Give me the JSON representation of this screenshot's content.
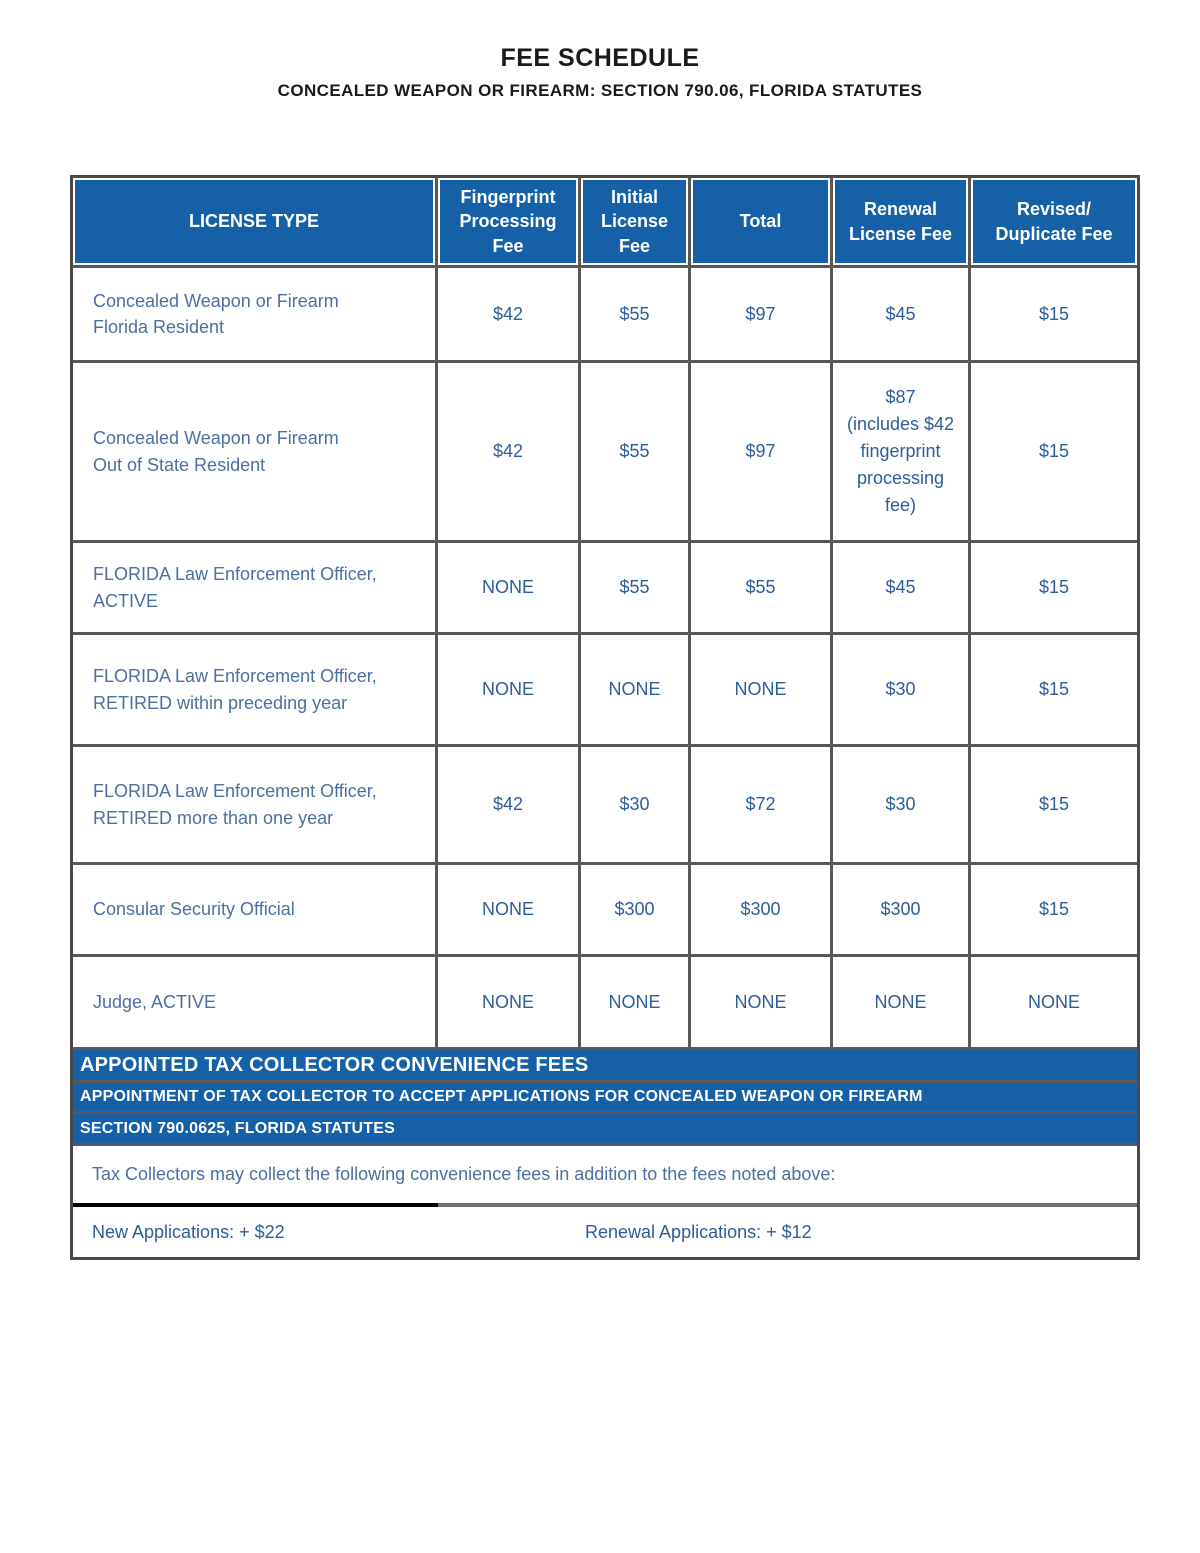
{
  "document": {
    "title": "FEE SCHEDULE",
    "subtitle": "CONCEALED WEAPON OR FIREARM: SECTION 790.06, FLORIDA STATUTES"
  },
  "colors": {
    "header_blue": "#1560a7",
    "border_gray": "#595959",
    "outer_border": "#4a4a4a",
    "license_text_blue": "#4d6fa1",
    "fee_value_blue": "#2f5d99",
    "banner_text": "#ffffff",
    "divider_black": "#000000"
  },
  "fee_table": {
    "columns": [
      {
        "label": "LICENSE TYPE"
      },
      {
        "label": "Fingerprint\nProcessing\nFee"
      },
      {
        "label": "Initial\nLicense\nFee"
      },
      {
        "label": "Total"
      },
      {
        "label": "Renewal\nLicense Fee"
      },
      {
        "label": "Revised/\nDuplicate Fee"
      }
    ],
    "rows": [
      {
        "license_type": "Concealed Weapon or Firearm\nFlorida Resident",
        "fees": [
          "$42",
          "$55",
          "$97",
          "$45",
          "$15"
        ]
      },
      {
        "license_type": "Concealed Weapon or Firearm\nOut of State Resident",
        "fees": [
          "$42",
          "$55",
          "$97",
          "$87\n(includes $42\nfingerprint\nprocessing\nfee)",
          "$15"
        ]
      },
      {
        "license_type": "FLORIDA Law Enforcement Officer,\nACTIVE",
        "fees": [
          "NONE",
          "$55",
          "$55",
          "$45",
          "$15"
        ]
      },
      {
        "license_type": "FLORIDA Law Enforcement Officer,\nRETIRED within preceding year",
        "fees": [
          "NONE",
          "NONE",
          "NONE",
          "$30",
          "$15"
        ]
      },
      {
        "license_type": "FLORIDA Law Enforcement Officer,\nRETIRED more than one year",
        "fees": [
          "$42",
          "$30",
          "$72",
          "$30",
          "$15"
        ]
      },
      {
        "license_type": "Consular Security Official",
        "fees": [
          "NONE",
          "$300",
          "$300",
          "$300",
          "$15"
        ]
      },
      {
        "license_type": "Judge, ACTIVE",
        "fees": [
          "NONE",
          "NONE",
          "NONE",
          "NONE",
          "NONE"
        ]
      }
    ]
  },
  "convenience_section": {
    "banner_title": "APPOINTED TAX COLLECTOR CONVENIENCE FEES",
    "banner_line2": "APPOINTMENT OF TAX COLLECTOR TO ACCEPT APPLICATIONS FOR CONCEALED WEAPON OR FIREARM",
    "banner_line3": "SECTION 790.0625, FLORIDA STATUTES",
    "note": "Tax Collectors may collect the following convenience fees in addition to the fees noted above:",
    "new_applications": "New Applications: + $22",
    "renewal_applications": "Renewal Applications: + $12"
  }
}
